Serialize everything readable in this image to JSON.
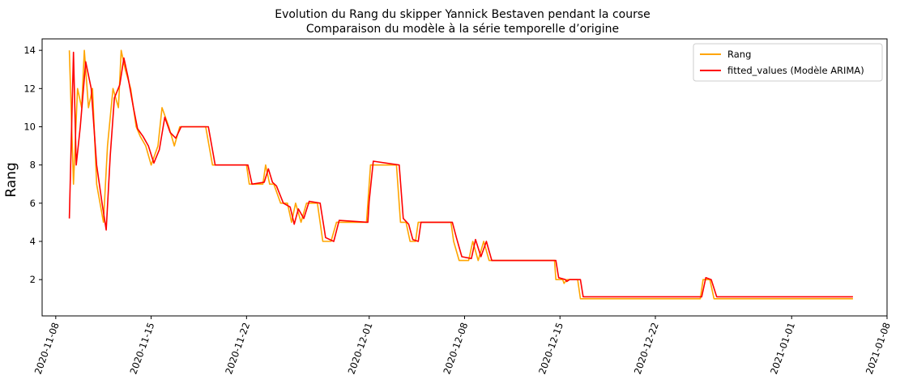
{
  "chart_data": {
    "type": "line",
    "title": "Evolution du Rang du skipper Yannick Bestaven pendant la course",
    "subtitle": "Comparaison du modèle à la série temporelle d’origine",
    "xlabel": "",
    "ylabel": "Rang",
    "xlim": [
      "2020-11-07",
      "2021-01-08"
    ],
    "ylim": [
      0.1,
      14.6
    ],
    "grid": false,
    "legend_position": "top-right",
    "x_ticks": [
      "2020-11-08",
      "2020-11-15",
      "2020-11-22",
      "2020-12-01",
      "2020-12-08",
      "2020-12-15",
      "2020-12-22",
      "2021-01-01",
      "2021-01-08"
    ],
    "y_ticks": [
      2,
      4,
      6,
      8,
      10,
      12,
      14
    ],
    "series": [
      {
        "name": "Rang",
        "color": "#FFA500",
        "points": [
          [
            "2020-11-09",
            14
          ],
          [
            "2020-11-09.3",
            7
          ],
          [
            "2020-11-09.6",
            12
          ],
          [
            "2020-11-09.9",
            11
          ],
          [
            "2020-11-10.1",
            14
          ],
          [
            "2020-11-10.4",
            11
          ],
          [
            "2020-11-10.7",
            12
          ],
          [
            "2020-11-11",
            7
          ],
          [
            "2020-11-11.5",
            5
          ],
          [
            "2020-11-11.8",
            9
          ],
          [
            "2020-11-12.2",
            12
          ],
          [
            "2020-11-12.6",
            11
          ],
          [
            "2020-11-12.8",
            14
          ],
          [
            "2020-11-13.1",
            13
          ],
          [
            "2020-11-13.5",
            12
          ],
          [
            "2020-11-13.9",
            10
          ],
          [
            "2020-11-14.2",
            9.5
          ],
          [
            "2020-11-14.6",
            9
          ],
          [
            "2020-11-15",
            8
          ],
          [
            "2020-11-15.5",
            9
          ],
          [
            "2020-11-15.8",
            11
          ],
          [
            "2020-11-16.3",
            10
          ],
          [
            "2020-11-16.7",
            9
          ],
          [
            "2020-11-17.1",
            10
          ],
          [
            "2020-11-17.5",
            10
          ],
          [
            "2020-11-19",
            10
          ],
          [
            "2020-11-19.5",
            8
          ],
          [
            "2020-11-22",
            8
          ],
          [
            "2020-11-22.2",
            7
          ],
          [
            "2020-11-23.2",
            7
          ],
          [
            "2020-11-23.4",
            8
          ],
          [
            "2020-11-23.7",
            7
          ],
          [
            "2020-11-24",
            7
          ],
          [
            "2020-11-24.5",
            6
          ],
          [
            "2020-11-25",
            6
          ],
          [
            "2020-11-25.3",
            5
          ],
          [
            "2020-11-25.6",
            6
          ],
          [
            "2020-11-26",
            5
          ],
          [
            "2020-11-26.4",
            6
          ],
          [
            "2020-11-27.2",
            6
          ],
          [
            "2020-11-27.6",
            4
          ],
          [
            "2020-11-28.2",
            4
          ],
          [
            "2020-11-28.6",
            5
          ],
          [
            "2020-11-30.8",
            5
          ],
          [
            "2020-11-30.9",
            6
          ],
          [
            "2020-12-01.1",
            8
          ],
          [
            "2020-12-03",
            8
          ],
          [
            "2020-12-03.3",
            5
          ],
          [
            "2020-12-03.7",
            5
          ],
          [
            "2020-12-04",
            4
          ],
          [
            "2020-12-04.4",
            4
          ],
          [
            "2020-12-04.6",
            5
          ],
          [
            "2020-12-07",
            5
          ],
          [
            "2020-12-07.2",
            4
          ],
          [
            "2020-12-07.6",
            3
          ],
          [
            "2020-12-08.3",
            3
          ],
          [
            "2020-12-08.6",
            4
          ],
          [
            "2020-12-09",
            3
          ],
          [
            "2020-12-09.4",
            4
          ],
          [
            "2020-12-09.8",
            3
          ],
          [
            "2020-12-14.6",
            3
          ],
          [
            "2020-12-14.7",
            2
          ],
          [
            "2020-12-15.2",
            2
          ],
          [
            "2020-12-15.3",
            1.8
          ],
          [
            "2020-12-15.5",
            2
          ],
          [
            "2020-12-16.3",
            2
          ],
          [
            "2020-12-16.5",
            1
          ],
          [
            "2020-12-25.3",
            1
          ],
          [
            "2020-12-25.5",
            2
          ],
          [
            "2020-12-26",
            2
          ],
          [
            "2020-12-26.3",
            1
          ],
          [
            "2021-01-05.5",
            1
          ]
        ]
      },
      {
        "name": "fitted_values (Modèle ARIMA)",
        "color": "#FF0000",
        "points": [
          [
            "2020-11-09",
            5.2
          ],
          [
            "2020-11-09.3",
            13.9
          ],
          [
            "2020-11-09.5",
            8
          ],
          [
            "2020-11-09.8",
            10
          ],
          [
            "2020-11-10.2",
            13.4
          ],
          [
            "2020-11-10.6",
            12
          ],
          [
            "2020-11-11",
            8
          ],
          [
            "2020-11-11.4",
            6
          ],
          [
            "2020-11-11.7",
            4.6
          ],
          [
            "2020-11-12",
            8.5
          ],
          [
            "2020-11-12.3",
            11.5
          ],
          [
            "2020-11-12.7",
            12.2
          ],
          [
            "2020-11-13",
            13.6
          ],
          [
            "2020-11-13.3",
            12.6
          ],
          [
            "2020-11-13.7",
            11
          ],
          [
            "2020-11-14",
            9.9
          ],
          [
            "2020-11-14.4",
            9.5
          ],
          [
            "2020-11-14.8",
            9
          ],
          [
            "2020-11-15.2",
            8.1
          ],
          [
            "2020-11-15.6",
            8.8
          ],
          [
            "2020-11-16",
            10.5
          ],
          [
            "2020-11-16.4",
            9.7
          ],
          [
            "2020-11-16.8",
            9.4
          ],
          [
            "2020-11-17.2",
            10
          ],
          [
            "2020-11-17.6",
            10
          ],
          [
            "2020-11-19.2",
            10
          ],
          [
            "2020-11-19.7",
            8
          ],
          [
            "2020-11-22.1",
            8
          ],
          [
            "2020-11-22.4",
            7
          ],
          [
            "2020-11-23.3",
            7.1
          ],
          [
            "2020-11-23.6",
            7.8
          ],
          [
            "2020-11-23.9",
            7.1
          ],
          [
            "2020-11-24.2",
            6.9
          ],
          [
            "2020-11-24.7",
            6
          ],
          [
            "2020-11-25.2",
            5.8
          ],
          [
            "2020-11-25.5",
            4.9
          ],
          [
            "2020-11-25.8",
            5.7
          ],
          [
            "2020-11-26.2",
            5.2
          ],
          [
            "2020-11-26.6",
            6.1
          ],
          [
            "2020-11-27.4",
            6
          ],
          [
            "2020-11-27.8",
            4.2
          ],
          [
            "2020-11-28.4",
            4
          ],
          [
            "2020-11-28.8",
            5.1
          ],
          [
            "2020-11-30.9",
            5
          ],
          [
            "2020-12-01",
            6.1
          ],
          [
            "2020-12-01.3",
            8.2
          ],
          [
            "2020-12-03.2",
            8
          ],
          [
            "2020-12-03.5",
            5.2
          ],
          [
            "2020-12-03.9",
            4.9
          ],
          [
            "2020-12-04.2",
            4.1
          ],
          [
            "2020-12-04.6",
            4
          ],
          [
            "2020-12-04.8",
            5
          ],
          [
            "2020-12-07.1",
            5
          ],
          [
            "2020-12-07.4",
            4.2
          ],
          [
            "2020-12-07.8",
            3.2
          ],
          [
            "2020-12-08.5",
            3.1
          ],
          [
            "2020-12-08.8",
            4.1
          ],
          [
            "2020-12-09.2",
            3.2
          ],
          [
            "2020-12-09.6",
            4
          ],
          [
            "2020-12-10",
            3
          ],
          [
            "2020-12-14.7",
            3
          ],
          [
            "2020-12-14.9",
            2.1
          ],
          [
            "2020-12-15.4",
            2
          ],
          [
            "2020-12-15.5",
            1.9
          ],
          [
            "2020-12-15.7",
            2
          ],
          [
            "2020-12-16.5",
            2
          ],
          [
            "2020-12-16.7",
            1.1
          ],
          [
            "2020-12-25.4",
            1.1
          ],
          [
            "2020-12-25.7",
            2.1
          ],
          [
            "2020-12-26.1",
            2
          ],
          [
            "2020-12-26.5",
            1.1
          ],
          [
            "2021-01-05.5",
            1.1
          ]
        ]
      }
    ]
  }
}
